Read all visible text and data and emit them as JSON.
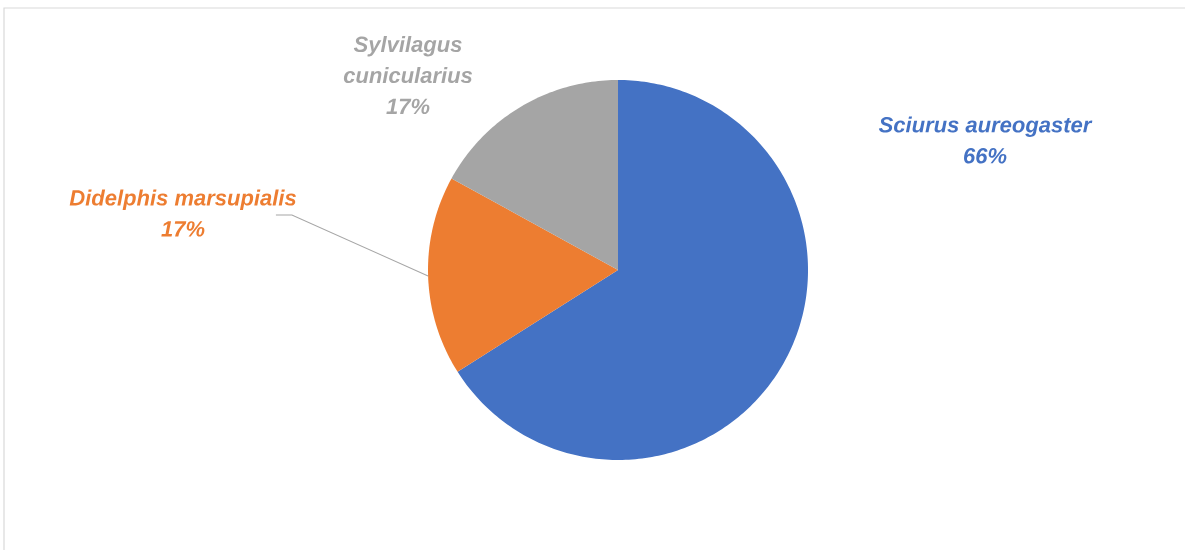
{
  "chart_data": {
    "type": "pie",
    "categories": [
      "Sciurus aureogaster",
      "Didelphis marsupialis",
      "Sylvilagus cunicularius"
    ],
    "values": [
      66,
      17,
      17
    ],
    "colors": [
      "#4472c4",
      "#ed7d31",
      "#a5a5a5"
    ],
    "value_labels": [
      "66%",
      "17%",
      "17%"
    ]
  }
}
